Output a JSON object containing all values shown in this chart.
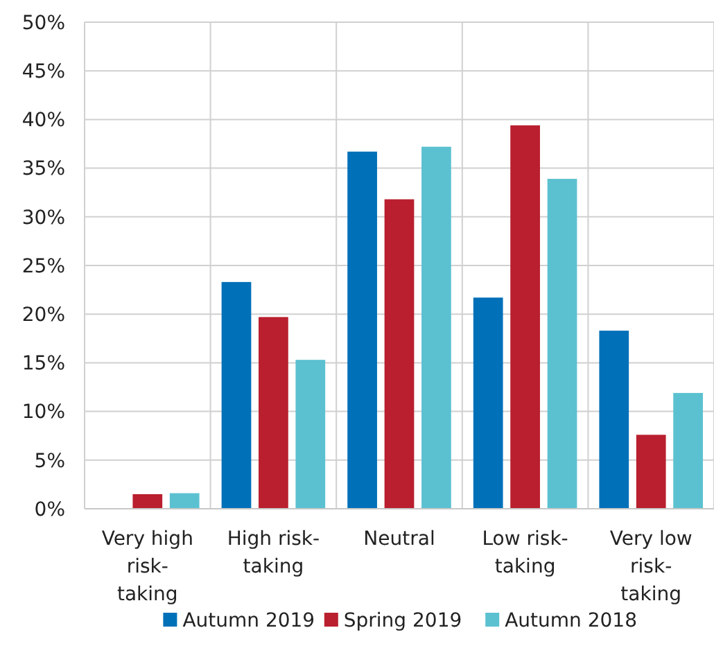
{
  "chart_data": {
    "type": "bar",
    "categories": [
      "Very high risk-taking",
      "High risk-taking",
      "Neutral",
      "Low risk-taking",
      "Very low risk-taking"
    ],
    "series": [
      {
        "name": "Autumn 2019",
        "color": "#0070b8",
        "values": [
          0,
          23.3,
          36.7,
          21.7,
          18.3
        ]
      },
      {
        "name": "Spring 2019",
        "color": "#b91f2e",
        "values": [
          1.5,
          19.7,
          31.8,
          39.4,
          7.6
        ]
      },
      {
        "name": "Autumn 2018",
        "color": "#5bc1d0",
        "values": [
          1.6,
          15.3,
          37.2,
          33.9,
          11.9
        ]
      }
    ],
    "ylim": [
      0,
      50
    ],
    "yticks": [
      {
        "value": 0,
        "label": "0%"
      },
      {
        "value": 5,
        "label": "5%"
      },
      {
        "value": 10,
        "label": "10%"
      },
      {
        "value": 15,
        "label": "15%"
      },
      {
        "value": 20,
        "label": "20%"
      },
      {
        "value": 25,
        "label": "25%"
      },
      {
        "value": 30,
        "label": "30%"
      },
      {
        "value": 35,
        "label": "35%"
      },
      {
        "value": 40,
        "label": "40%"
      },
      {
        "value": 45,
        "label": "45%"
      },
      {
        "value": 50,
        "label": "50%"
      }
    ],
    "grid": true,
    "legend": "bottom"
  }
}
